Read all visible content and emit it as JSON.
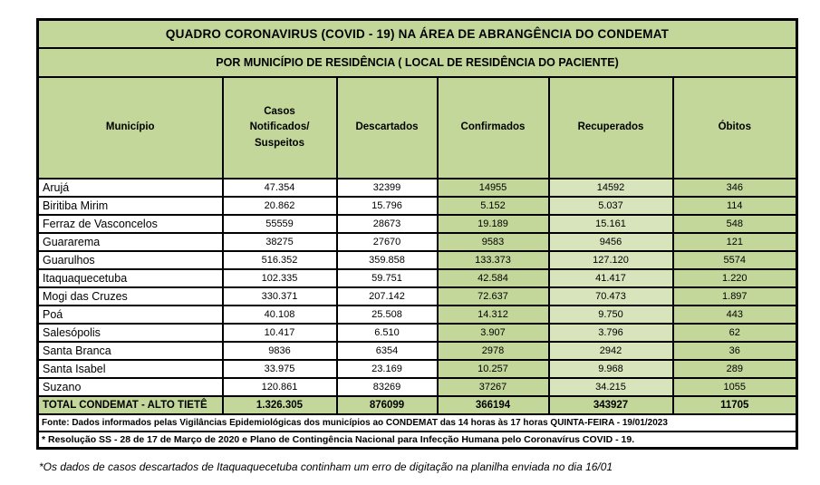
{
  "table": {
    "title": "QUADRO CORONAVIRUS (COVID - 19) NA ÁREA DE ABRANGÊNCIA DO CONDEMAT",
    "subtitle": "POR MUNICÍPIO DE RESIDÊNCIA ( LOCAL DE RESIDÊNCIA DO PACIENTE)",
    "columns": [
      "Município",
      "Casos Notificados/ Suspeitos",
      "Descartados",
      "Confirmados",
      "Recuperados",
      "Óbitos"
    ],
    "rows": [
      {
        "municipio": "Arujá",
        "casos": "47.354",
        "descartados": "32399",
        "confirmados": "14955",
        "recuperados": "14592",
        "obitos": "346"
      },
      {
        "municipio": "Biritiba Mirim",
        "casos": "20.862",
        "descartados": "15.796",
        "confirmados": "5.152",
        "recuperados": "5.037",
        "obitos": "114"
      },
      {
        "municipio": "Ferraz de Vasconcelos",
        "casos": "55559",
        "descartados": "28673",
        "confirmados": "19.189",
        "recuperados": "15.161",
        "obitos": "548"
      },
      {
        "municipio": "Guararema",
        "casos": "38275",
        "descartados": "27670",
        "confirmados": "9583",
        "recuperados": "9456",
        "obitos": "121"
      },
      {
        "municipio": "Guarulhos",
        "casos": "516.352",
        "descartados": "359.858",
        "confirmados": "133.373",
        "recuperados": "127.120",
        "obitos": "5574"
      },
      {
        "municipio": "Itaquaquecetuba",
        "casos": "102.335",
        "descartados": "59.751",
        "confirmados": "42.584",
        "recuperados": "41.417",
        "obitos": "1.220"
      },
      {
        "municipio": "Mogi das Cruzes",
        "casos": "330.371",
        "descartados": "207.142",
        "confirmados": "72.637",
        "recuperados": "70.473",
        "obitos": "1.897"
      },
      {
        "municipio": "Poá",
        "casos": "40.108",
        "descartados": "25.508",
        "confirmados": "14.312",
        "recuperados": "9.750",
        "obitos": "443"
      },
      {
        "municipio": "Salesópolis",
        "casos": "10.417",
        "descartados": "6.510",
        "confirmados": "3.907",
        "recuperados": "3.796",
        "obitos": "62"
      },
      {
        "municipio": "Santa Branca",
        "casos": "9836",
        "descartados": "6354",
        "confirmados": "2978",
        "recuperados": "2942",
        "obitos": "36"
      },
      {
        "municipio": "Santa Isabel",
        "casos": "33.975",
        "descartados": "23.169",
        "confirmados": "10.257",
        "recuperados": "9.968",
        "obitos": "289"
      },
      {
        "municipio": "Suzano",
        "casos": "120.861",
        "descartados": "83269",
        "confirmados": "37267",
        "recuperados": "34.215",
        "obitos": "1055"
      }
    ],
    "total": {
      "label": "TOTAL CONDEMAT - ALTO TIETÊ",
      "casos": "1.326.305",
      "descartados": "876099",
      "confirmados": "366194",
      "recuperados": "343927",
      "obitos": "11705"
    },
    "fonte": "Fonte: Dados informados pelas Vigilâncias Epidemiológicas dos municípios ao CONDEMAT das 14 horas às 17 horas QUINTA-FEIRA - 19/01/2023",
    "resolucao": "* Resolução SS - 28 de 17 de Março de 2020 e Plano de Contingência Nacional para Infecção Humana pelo Coronavírus COVID - 19.",
    "observacao": "*Os dados de casos descartados de Itaquaquecetuba continham um erro de digitação na planilha enviada no dia 16/01"
  },
  "colors": {
    "green": "#c4d79b",
    "light_green": "#d8e4bc",
    "red": "#ff0000",
    "border": "#000000"
  }
}
